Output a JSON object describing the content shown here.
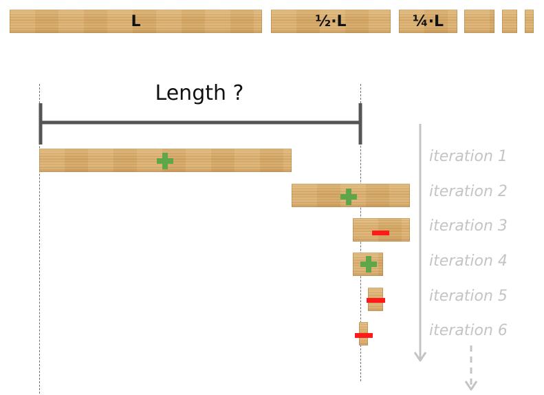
{
  "pieces": {
    "full_label": "L",
    "half_label": "½·L",
    "quarter_label": "¼·L"
  },
  "measure": {
    "title": "Length ?"
  },
  "iterations": [
    {
      "label": "iteration 1",
      "sign": "plus"
    },
    {
      "label": "iteration 2",
      "sign": "plus"
    },
    {
      "label": "iteration 3",
      "sign": "minus"
    },
    {
      "label": "iteration 4",
      "sign": "plus"
    },
    {
      "label": "iteration 5",
      "sign": "minus"
    },
    {
      "label": "iteration 6",
      "sign": "minus"
    }
  ],
  "colors": {
    "wood": "#d9ad6c",
    "plus": "#5fa64a",
    "minus": "#ff1a1a",
    "measure_line": "#555555",
    "iteration_text": "#c4c4c4",
    "arrow": "#c4c4c4"
  }
}
